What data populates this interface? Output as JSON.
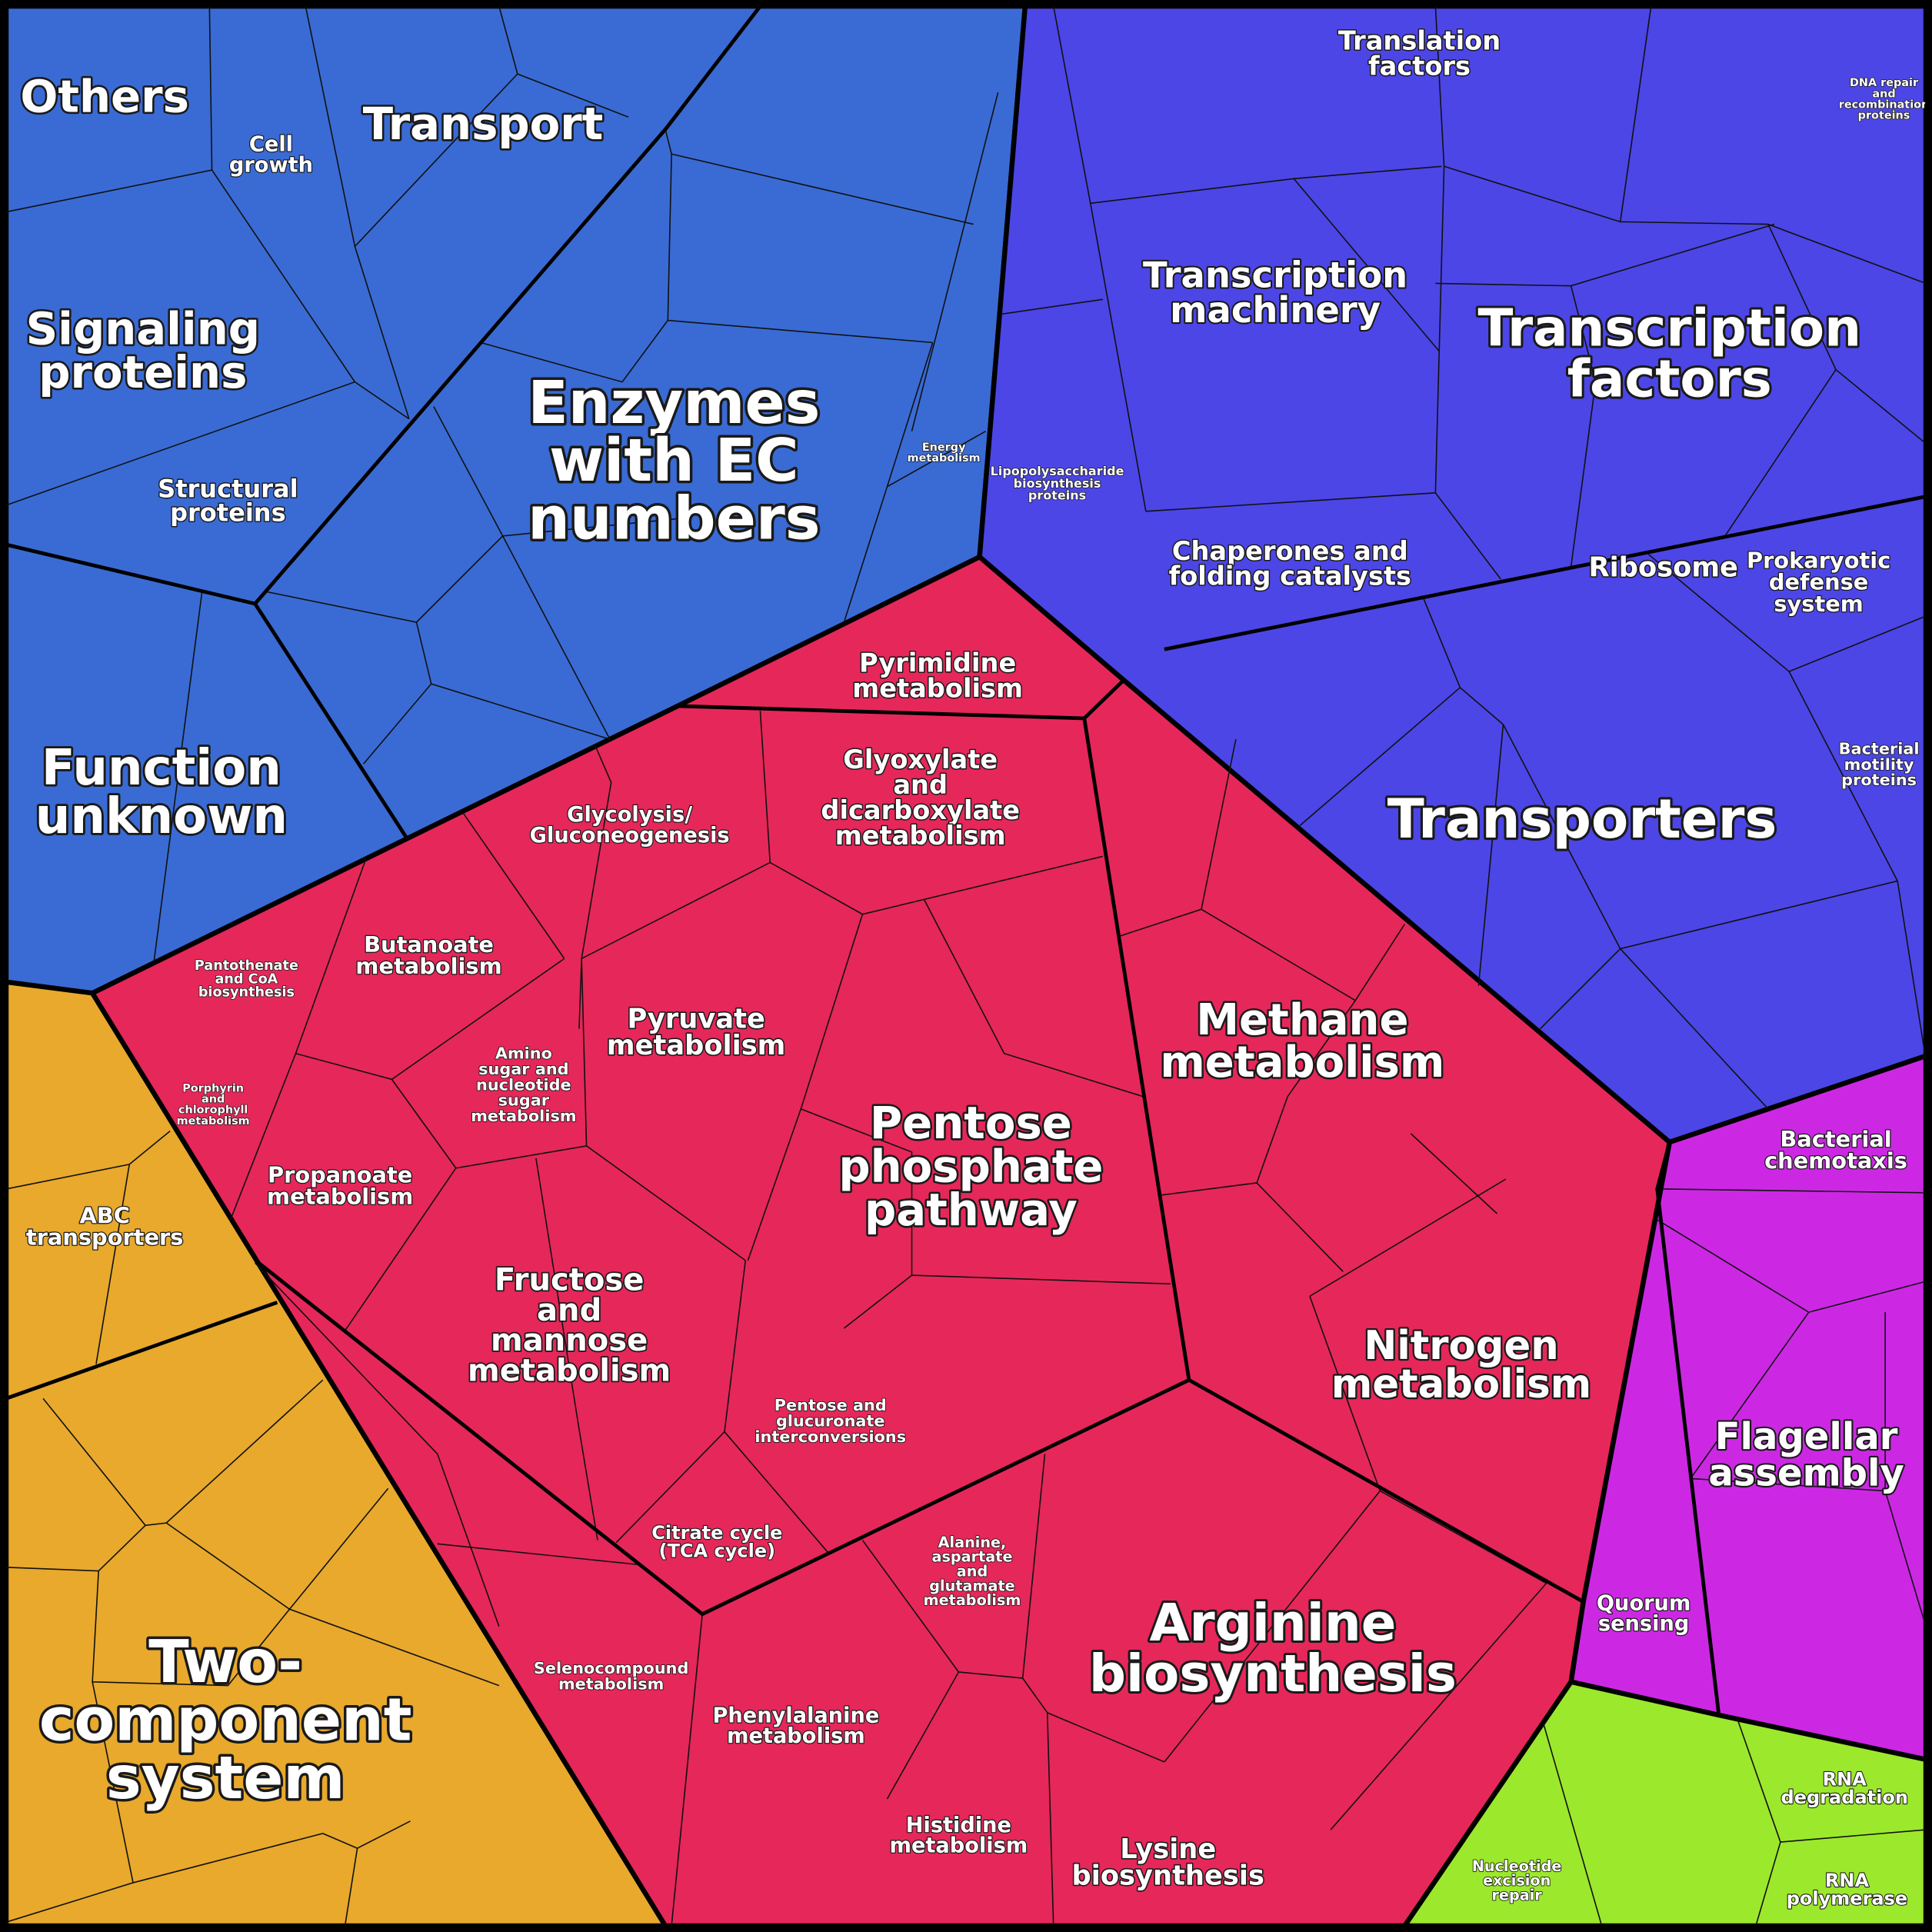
{
  "cells": [
    {
      "label": "Others"
    },
    {
      "label": "Cell\ngrowth"
    },
    {
      "label": "Transport"
    },
    {
      "label": "Signaling\nproteins"
    },
    {
      "label": "Structural\nproteins"
    },
    {
      "label": "Enzymes\nwith EC\nnumbers"
    },
    {
      "label": "Energy\nmetabolism"
    },
    {
      "label": "Function\nunknown"
    },
    {
      "label": "Translation\nfactors"
    },
    {
      "label": "DNA repair\nand\nrecombination\nproteins"
    },
    {
      "label": "Transcription\nmachinery"
    },
    {
      "label": "Transcription\nfactors"
    },
    {
      "label": "Lipopolysaccharide\nbiosynthesis\nproteins"
    },
    {
      "label": "Chaperones and\nfolding catalysts"
    },
    {
      "label": "Prokaryotic\ndefense\nsystem"
    },
    {
      "label": "Bacterial\nmotility\nproteins"
    },
    {
      "label": "Transporters"
    },
    {
      "label": "Pyrimidine\nmetabolism"
    },
    {
      "label": "Glyoxylate\nand\ndicarboxylate\nmetabolism"
    },
    {
      "label": "Glycolysis/\nGluconeogenesis"
    },
    {
      "label": "Pantothenate\nand CoA\nbiosynthesis"
    },
    {
      "label": "Butanoate\nmetabolism"
    },
    {
      "label": "Porphyrin\nand\nchlorophyll\nmetabolism"
    },
    {
      "label": "Amino\nsugar and\nnucleotide\nsugar\nmetabolism"
    },
    {
      "label": "Pyruvate\nmetabolism"
    },
    {
      "label": "Methane\nmetabolism"
    },
    {
      "label": "Pentose\nphosphate\npathway"
    },
    {
      "label": "Propanoate\nmetabolism"
    },
    {
      "label": "Fructose\nand\nmannose\nmetabolism"
    },
    {
      "label": "Nitrogen\nmetabolism"
    },
    {
      "label": "Pentose and\nglucuronate\ninterconversions"
    },
    {
      "label": "Citrate cycle\n(TCA cycle)"
    },
    {
      "label": "Alanine,\naspartate\nand\nglutamate\nmetabolism"
    },
    {
      "label": "Selenocompound\nmetabolism"
    },
    {
      "label": "Arginine\nbiosynthesis"
    },
    {
      "label": "Phenylalanine\nmetabolism"
    },
    {
      "label": "Histidine\nmetabolism"
    },
    {
      "label": "Lysine\nbiosynthesis"
    },
    {
      "label": "Bacterial\nchemotaxis"
    },
    {
      "label": "Flagellar\nassembly"
    },
    {
      "label": "Quorum\nsensing"
    },
    {
      "label": "Ribosome"
    },
    {
      "label": "RNA\ndegradation"
    },
    {
      "label": "Nucleotide\nexcision\nrepair"
    },
    {
      "label": "RNA\npolymerase"
    },
    {
      "label": "ABC\ntransporters"
    },
    {
      "label": "Two-\ncomponent\nsystem"
    }
  ]
}
